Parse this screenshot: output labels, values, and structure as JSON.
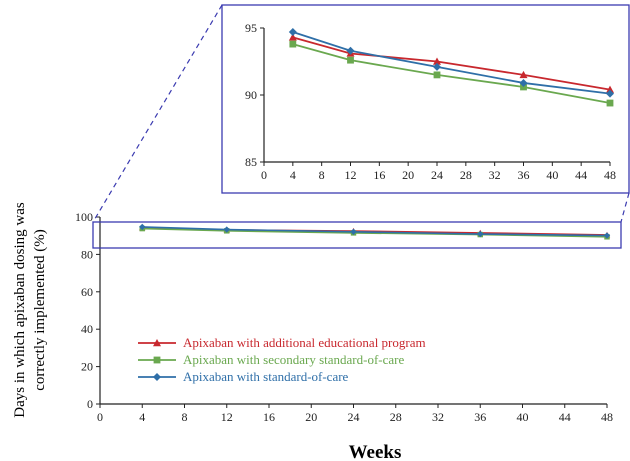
{
  "chart_data": [
    {
      "type": "line",
      "panel": "main",
      "xlabel": "Weeks",
      "ylabel_line1": "Days in which apixaban dosing was",
      "ylabel_line2": "correctly implemented (%)",
      "xlim": [
        0,
        48
      ],
      "ylim": [
        0,
        100
      ],
      "xticks": [
        0,
        4,
        8,
        12,
        16,
        20,
        24,
        28,
        32,
        36,
        40,
        44,
        48
      ],
      "yticks": [
        0,
        20,
        40,
        60,
        80,
        100
      ],
      "grid": false,
      "legend_placement": "lower-left",
      "x": [
        4,
        12,
        24,
        36,
        48
      ],
      "series": [
        {
          "name": "Apixaban with additional educational program",
          "color": "#c8282e",
          "marker": "triangle",
          "values": [
            94.3,
            93.1,
            92.5,
            91.5,
            90.4
          ]
        },
        {
          "name": "Apixaban with secondary standard-of-care",
          "color": "#6aa84f",
          "marker": "square",
          "values": [
            93.8,
            92.6,
            91.5,
            90.6,
            89.4
          ]
        },
        {
          "name": "Apixaban with standard-of-care",
          "color": "#2f6fa8",
          "marker": "diamond",
          "values": [
            94.7,
            93.3,
            92.1,
            90.9,
            90.1
          ]
        }
      ]
    },
    {
      "type": "line",
      "panel": "inset",
      "xlim": [
        0,
        48
      ],
      "ylim": [
        85,
        95
      ],
      "xticks": [
        0,
        4,
        8,
        12,
        16,
        20,
        24,
        28,
        32,
        36,
        40,
        44,
        48
      ],
      "yticks": [
        85,
        90,
        95
      ],
      "grid": false,
      "x": [
        4,
        12,
        24,
        36,
        48
      ],
      "series": [
        {
          "color": "#c8282e",
          "marker": "triangle",
          "values": [
            94.3,
            93.1,
            92.5,
            91.5,
            90.4
          ]
        },
        {
          "color": "#6aa84f",
          "marker": "square",
          "values": [
            93.8,
            92.6,
            91.5,
            90.6,
            89.4
          ]
        },
        {
          "color": "#2f6fa8",
          "marker": "diamond",
          "values": [
            94.7,
            93.3,
            92.1,
            90.9,
            90.1
          ]
        }
      ]
    }
  ],
  "colors": {
    "zoom_box": "#3b3bb0",
    "axis": "#222222"
  }
}
